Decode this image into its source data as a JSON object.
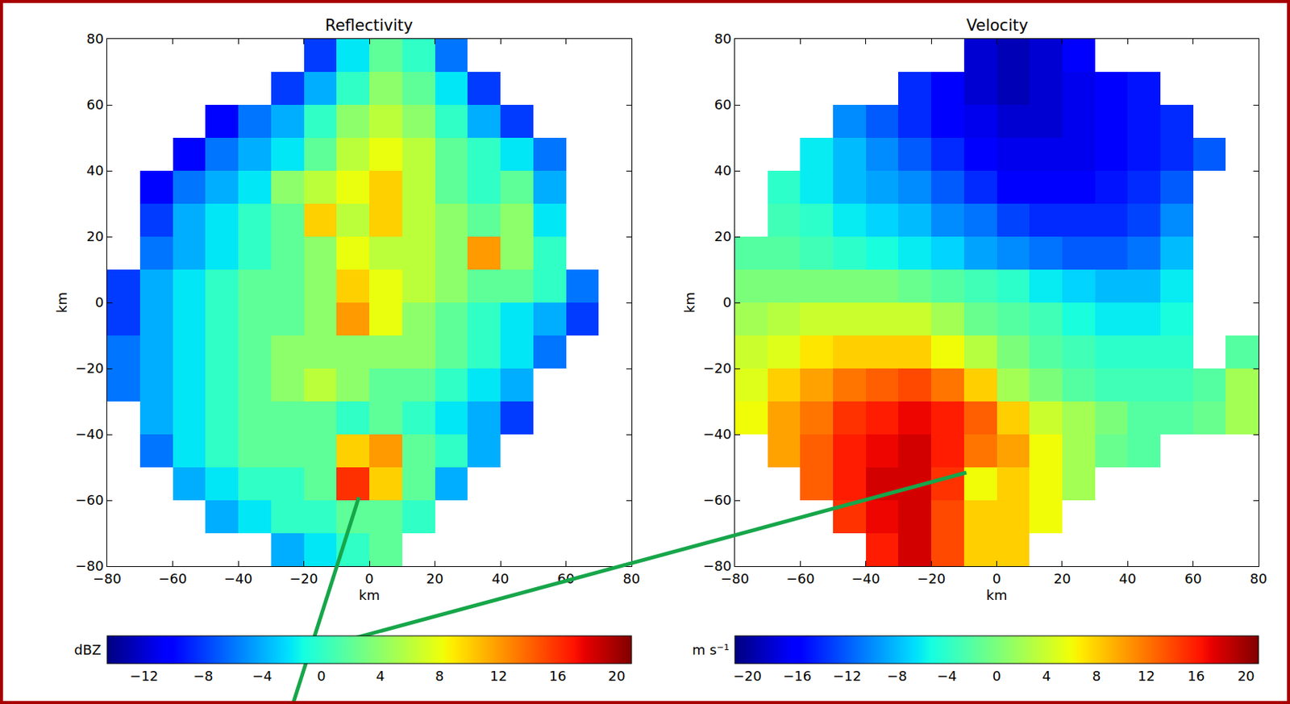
{
  "chart_data": [
    {
      "type": "heatmap",
      "title": "Reflectivity",
      "x_label": "km",
      "y_label": "km",
      "xlim": [
        -80,
        80
      ],
      "ylim": [
        -80,
        80
      ],
      "xticks": [
        {
          "value": -80,
          "label": "−80"
        },
        {
          "value": -60,
          "label": "−60"
        },
        {
          "value": -40,
          "label": "−40"
        },
        {
          "value": -20,
          "label": "−20"
        },
        0,
        20,
        40,
        60,
        80
      ],
      "yticks": [
        {
          "value": -80,
          "label": "−80"
        },
        {
          "value": -60,
          "label": "−60"
        },
        {
          "value": -40,
          "label": "−40"
        },
        {
          "value": -20,
          "label": "−20"
        },
        0,
        20,
        40,
        60,
        80
      ],
      "grid": false,
      "x": [
        -75,
        -65,
        -55,
        -45,
        -35,
        -25,
        -15,
        -5,
        5,
        15,
        25,
        35,
        45,
        55,
        65,
        75
      ],
      "y": [
        75,
        65,
        55,
        45,
        35,
        25,
        15,
        5,
        -5,
        -15,
        -25,
        -35,
        -45,
        -55,
        -65,
        -75
      ],
      "cells": [
        [
          null,
          null,
          null,
          null,
          null,
          null,
          -8,
          -2,
          2,
          0,
          -6,
          null,
          null,
          null,
          null,
          null
        ],
        [
          null,
          null,
          null,
          null,
          null,
          -8,
          -4,
          0,
          4,
          2,
          -2,
          -8,
          null,
          null,
          null,
          null
        ],
        [
          null,
          null,
          null,
          -10,
          -6,
          -4,
          0,
          4,
          6,
          4,
          0,
          -4,
          -8,
          null,
          null,
          null
        ],
        [
          null,
          null,
          -10,
          -6,
          -4,
          -2,
          2,
          6,
          8,
          6,
          2,
          0,
          -2,
          -6,
          null,
          null
        ],
        [
          null,
          -10,
          -6,
          -4,
          -2,
          4,
          6,
          8,
          10,
          6,
          2,
          0,
          2,
          -4,
          null,
          null
        ],
        [
          null,
          -8,
          -4,
          -2,
          0,
          2,
          10,
          6,
          10,
          6,
          4,
          2,
          4,
          -2,
          null,
          null
        ],
        [
          null,
          -6,
          -4,
          -2,
          0,
          2,
          4,
          8,
          6,
          6,
          4,
          12,
          4,
          0,
          null,
          null
        ],
        [
          -8,
          -4,
          -2,
          0,
          2,
          2,
          4,
          10,
          8,
          6,
          4,
          2,
          2,
          0,
          -6,
          null
        ],
        [
          -8,
          -4,
          -2,
          0,
          2,
          2,
          4,
          12,
          8,
          4,
          2,
          0,
          -2,
          -4,
          -8,
          null
        ],
        [
          -6,
          -4,
          -2,
          0,
          2,
          4,
          4,
          4,
          4,
          4,
          2,
          0,
          -2,
          -6,
          null,
          null
        ],
        [
          -6,
          -4,
          -2,
          0,
          2,
          4,
          6,
          4,
          2,
          2,
          0,
          -2,
          -4,
          null,
          null,
          null
        ],
        [
          null,
          -4,
          -2,
          0,
          2,
          2,
          2,
          0,
          2,
          0,
          -2,
          -4,
          -8,
          null,
          null,
          null
        ],
        [
          null,
          -6,
          -2,
          0,
          2,
          2,
          2,
          10,
          12,
          2,
          0,
          -4,
          null,
          null,
          null,
          null
        ],
        [
          null,
          null,
          -4,
          -2,
          0,
          0,
          2,
          16,
          10,
          2,
          -4,
          null,
          null,
          null,
          null,
          null
        ],
        [
          null,
          null,
          null,
          -4,
          -2,
          0,
          0,
          2,
          2,
          0,
          null,
          null,
          null,
          null,
          null,
          null
        ],
        [
          null,
          null,
          null,
          null,
          null,
          -4,
          -2,
          0,
          2,
          null,
          null,
          null,
          null,
          null,
          null,
          null
        ]
      ],
      "colorbar_label": "dBZ",
      "colorbar_range": [
        -14.5,
        21
      ],
      "colorbar_ticks": [
        {
          "value": -12,
          "label": "−12"
        },
        {
          "value": -8,
          "label": "−8"
        },
        {
          "value": -4,
          "label": "−4"
        },
        0,
        4,
        8,
        12,
        16,
        20
      ]
    },
    {
      "type": "heatmap",
      "title": "Velocity",
      "x_label": "km",
      "y_label": "km",
      "xlim": [
        -80,
        80
      ],
      "ylim": [
        -80,
        80
      ],
      "xticks": [
        {
          "value": -80,
          "label": "−80"
        },
        {
          "value": -60,
          "label": "−60"
        },
        {
          "value": -40,
          "label": "−40"
        },
        {
          "value": -20,
          "label": "−20"
        },
        0,
        20,
        40,
        60,
        80
      ],
      "yticks": [
        {
          "value": -80,
          "label": "−80"
        },
        {
          "value": -60,
          "label": "−60"
        },
        {
          "value": -40,
          "label": "−40"
        },
        {
          "value": -20,
          "label": "−20"
        },
        0,
        20,
        40,
        60,
        80
      ],
      "grid": false,
      "x": [
        -75,
        -65,
        -55,
        -45,
        -35,
        -25,
        -15,
        -5,
        5,
        15,
        25,
        35,
        45,
        55,
        65,
        75
      ],
      "y": [
        75,
        65,
        55,
        45,
        35,
        25,
        15,
        5,
        -5,
        -15,
        -25,
        -35,
        -45,
        -55,
        -65,
        -75
      ],
      "cells": [
        [
          null,
          null,
          null,
          null,
          null,
          null,
          null,
          -18,
          -19,
          -18,
          -16,
          null,
          null,
          null,
          null,
          null
        ],
        [
          null,
          null,
          null,
          null,
          null,
          -14,
          -16,
          -18,
          -19,
          -18,
          -17,
          -16,
          -15,
          null,
          null,
          null
        ],
        [
          null,
          null,
          null,
          -10,
          -12,
          -14,
          -16,
          -17,
          -18,
          -18,
          -17,
          -16,
          -15,
          -14,
          null,
          null
        ],
        [
          null,
          null,
          -6,
          -8,
          -10,
          -12,
          -14,
          -16,
          -17,
          -17,
          -17,
          -16,
          -15,
          -14,
          -12,
          null
        ],
        [
          null,
          -4,
          -6,
          -8,
          -9,
          -10,
          -12,
          -14,
          -16,
          -16,
          -16,
          -15,
          -14,
          -12,
          null,
          null
        ],
        [
          null,
          -3,
          -4,
          -6,
          -7,
          -8,
          -10,
          -11,
          -13,
          -14,
          -14,
          -14,
          -13,
          -10,
          null,
          null
        ],
        [
          -2,
          -2,
          -3,
          -4,
          -5,
          -6,
          -7,
          -9,
          -10,
          -11,
          -12,
          -12,
          -11,
          -8,
          null,
          null
        ],
        [
          0,
          0,
          0,
          0,
          0,
          -1,
          -2,
          -3,
          -4,
          -6,
          -7,
          -8,
          -8,
          -6,
          null,
          null
        ],
        [
          2,
          3,
          4,
          4,
          4,
          4,
          2,
          -1,
          -2,
          -3,
          -5,
          -6,
          -6,
          -5,
          null,
          null
        ],
        [
          4,
          5,
          7,
          8,
          8,
          8,
          6,
          3,
          0,
          -2,
          -3,
          -4,
          -4,
          -4,
          null,
          -2
        ],
        [
          5,
          8,
          10,
          12,
          13,
          14,
          12,
          8,
          2,
          0,
          -2,
          -3,
          -3,
          -3,
          -2,
          2
        ],
        [
          6,
          10,
          12,
          15,
          16,
          17,
          16,
          13,
          8,
          4,
          2,
          0,
          -2,
          -2,
          -1,
          2
        ],
        [
          null,
          10,
          13,
          16,
          17,
          18,
          16,
          12,
          10,
          6,
          2,
          -1,
          -2,
          null,
          null,
          null
        ],
        [
          null,
          null,
          13,
          16,
          18,
          18,
          15,
          6,
          8,
          6,
          2,
          null,
          null,
          null,
          null,
          null
        ],
        [
          null,
          null,
          null,
          15,
          17,
          18,
          14,
          8,
          8,
          6,
          null,
          null,
          null,
          null,
          null,
          null
        ],
        [
          null,
          null,
          null,
          null,
          16,
          18,
          14,
          8,
          8,
          null,
          null,
          null,
          null,
          null,
          null,
          null
        ]
      ],
      "colorbar_label": "m s⁻¹",
      "colorbar_range": [
        -21,
        21
      ],
      "colorbar_ticks": [
        {
          "value": -20,
          "label": "−20"
        },
        {
          "value": -16,
          "label": "−16"
        },
        {
          "value": -12,
          "label": "−12"
        },
        {
          "value": -8,
          "label": "−8"
        },
        {
          "value": -4,
          "label": "−4"
        },
        0,
        4,
        8,
        12,
        16,
        20
      ]
    }
  ]
}
